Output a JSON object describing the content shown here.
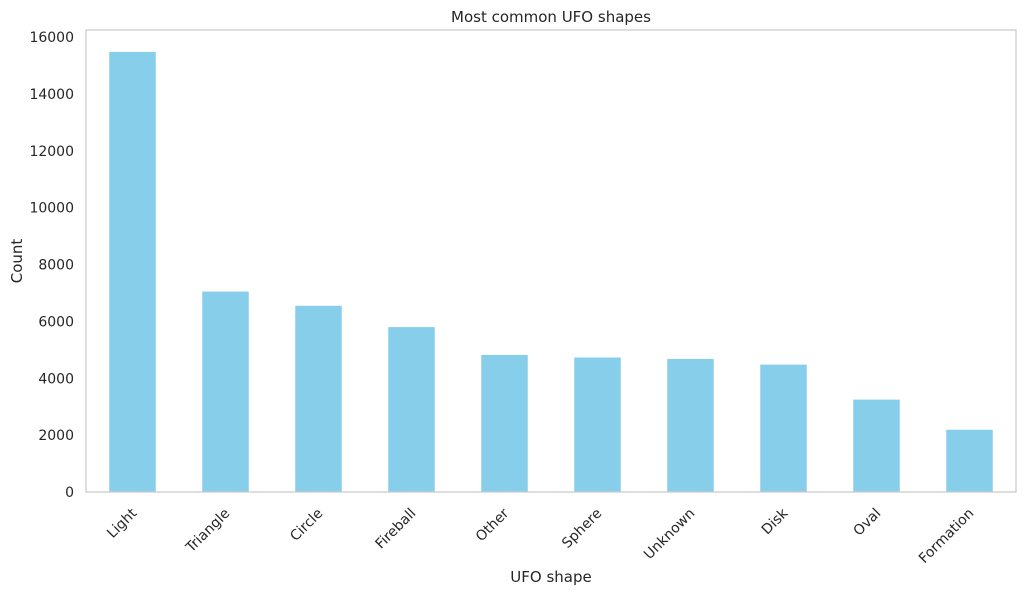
{
  "chart_data": {
    "type": "bar",
    "title": "Most common UFO shapes",
    "xlabel": "UFO shape",
    "ylabel": "Count",
    "categories": [
      "Light",
      "Triangle",
      "Circle",
      "Fireball",
      "Other",
      "Sphere",
      "Unknown",
      "Disk",
      "Oval",
      "Formation"
    ],
    "values": [
      15480,
      7050,
      6550,
      5800,
      4820,
      4730,
      4680,
      4480,
      3250,
      2190
    ],
    "ylim": [
      0,
      16250
    ],
    "yticks": [
      0,
      2000,
      4000,
      6000,
      8000,
      10000,
      12000,
      14000,
      16000
    ],
    "ytick_labels": [
      "0",
      "2000",
      "4000",
      "6000",
      "8000",
      "10000",
      "12000",
      "14000",
      "16000"
    ],
    "grid": false,
    "bar_color": "#87ceeb",
    "frame_color": "#cccccc",
    "text_color": "#262626"
  }
}
